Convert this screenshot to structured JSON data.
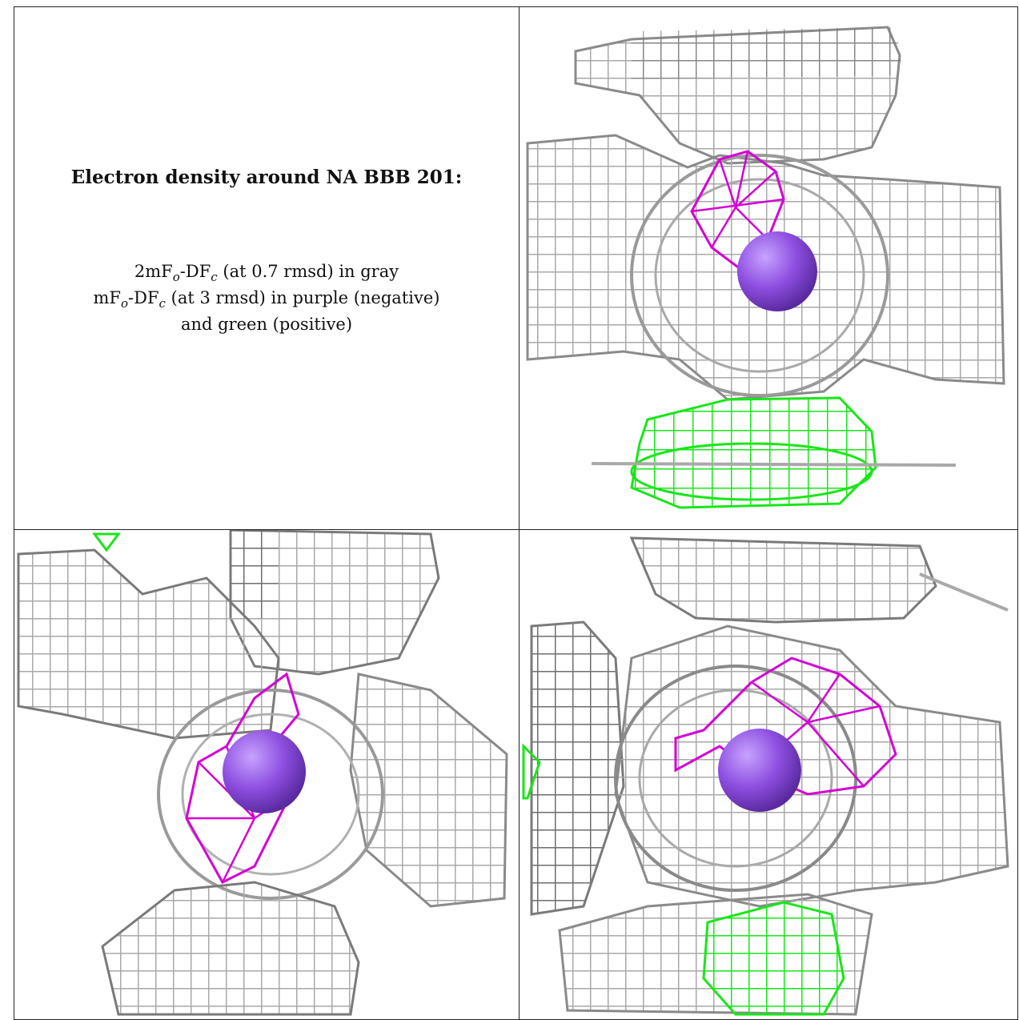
{
  "caption": {
    "title": "Electron density around NA BBB 201:",
    "line1": {
      "a": "2mF",
      "sub1": "o",
      "b": "-DF",
      "sub2": "c",
      "c": " (at 0.7 rmsd) in gray"
    },
    "line2": {
      "a": "mF",
      "sub1": "o",
      "b": "-DF",
      "sub2": "c",
      "c": " (at 3 rmsd) in purple (negative)"
    },
    "line3": "and green (positive)"
  },
  "colors": {
    "gray_mesh": "#a9a9a9",
    "gray_dark": "#6e6e6e",
    "purple_mesh": "#d400d4",
    "green_mesh": "#19e619",
    "sodium_sphere": "#8e4fe0"
  },
  "views": [
    {
      "id": "view-top-right",
      "sphere": "NA BBB 201"
    },
    {
      "id": "view-bottom-left",
      "sphere": "NA BBB 201"
    },
    {
      "id": "view-bottom-right",
      "sphere": "NA BBB 201"
    }
  ]
}
